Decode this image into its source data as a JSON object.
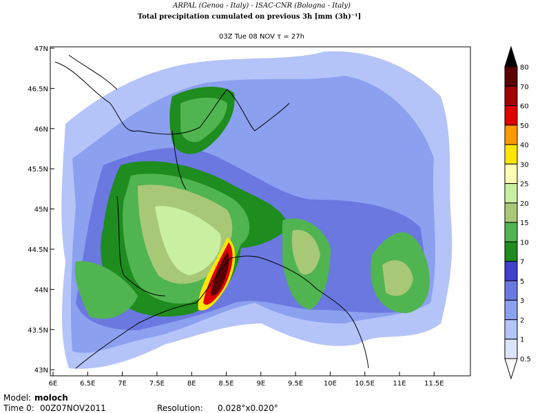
{
  "header": {
    "agencies": "ARPAL (Genoa - Italy)  -  ISAC-CNR (Bologna - Italy)",
    "title": "Total precipitation cumulated on previous 3h [mm (3h)⁻¹]",
    "subtitle": "03Z Tue 08 NOV  τ = 27h"
  },
  "map": {
    "lon_labels": [
      "6E",
      "6.5E",
      "7E",
      "7.5E",
      "8E",
      "8.5E",
      "9E",
      "9.5E",
      "10E",
      "10.5E",
      "11E",
      "11.5E"
    ],
    "lat_labels": [
      "47N",
      "46.5N",
      "46N",
      "45.5N",
      "45N",
      "44.5N",
      "44N",
      "43.5N",
      "43N"
    ],
    "colorbar": {
      "levels": [
        80,
        70,
        60,
        50,
        40,
        30,
        25,
        20,
        15,
        10,
        7,
        5,
        3,
        2,
        1,
        0.5
      ],
      "colors": [
        "#000000",
        "#5a0000",
        "#a00000",
        "#e00000",
        "#ff9900",
        "#ffe600",
        "#ffffb3",
        "#c8f0a0",
        "#a8c878",
        "#50b450",
        "#1e8c1e",
        "#4040d0",
        "#6a78e0",
        "#8ca0f0",
        "#b4c4f8",
        "#dce4fc",
        "#ffffff"
      ]
    }
  },
  "footer": {
    "model_label": "Model:",
    "model": "moloch",
    "time_label": "Time 0:",
    "time": "00Z07NOV2011",
    "resolution_label": "Resolution:",
    "resolution": "0.028°x0.020°"
  }
}
